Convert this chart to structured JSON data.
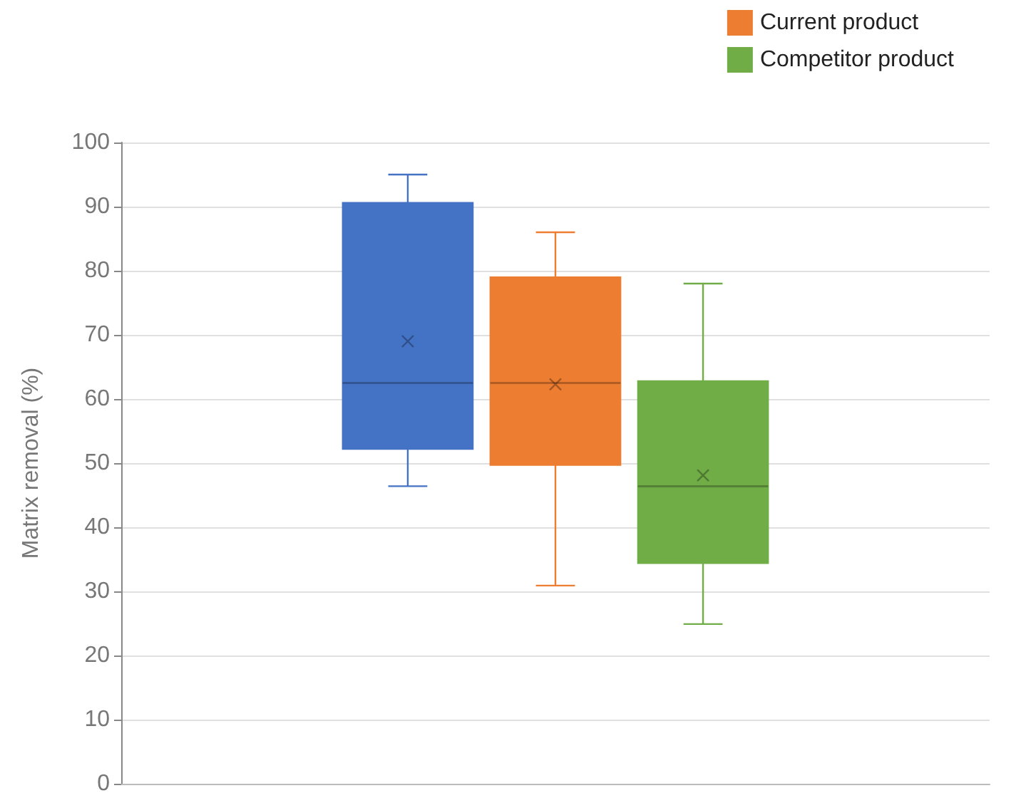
{
  "chart_data": {
    "type": "box",
    "ylabel": "Matrix removal (%)",
    "categories": [
      null
    ],
    "series": [
      {
        "color": "#4472c4",
        "boxes": [
          {
            "low": 46.4,
            "q1": 52.2,
            "median": 62.5,
            "q3": 90.6,
            "high": 95,
            "mean": 69
          }
        ]
      },
      {
        "name": "Current product",
        "color": "#ed7d31",
        "boxes": [
          {
            "low": 30.9,
            "q1": 49.7,
            "median": 62.5,
            "q3": 79,
            "high": 86,
            "mean": 62.3
          }
        ]
      },
      {
        "name": "Competitor product",
        "color": "#70ad47",
        "boxes": [
          {
            "low": 24.9,
            "q1": 34.4,
            "median": 46.4,
            "q3": 62.8,
            "high": 78,
            "mean": 48.1
          }
        ]
      }
    ],
    "ylim": [
      0,
      100
    ],
    "yticks": [
      0,
      10,
      20,
      30,
      40,
      50,
      60,
      70,
      80,
      90,
      100
    ],
    "grid": "y",
    "legend": "top right",
    "marker": "cross"
  }
}
